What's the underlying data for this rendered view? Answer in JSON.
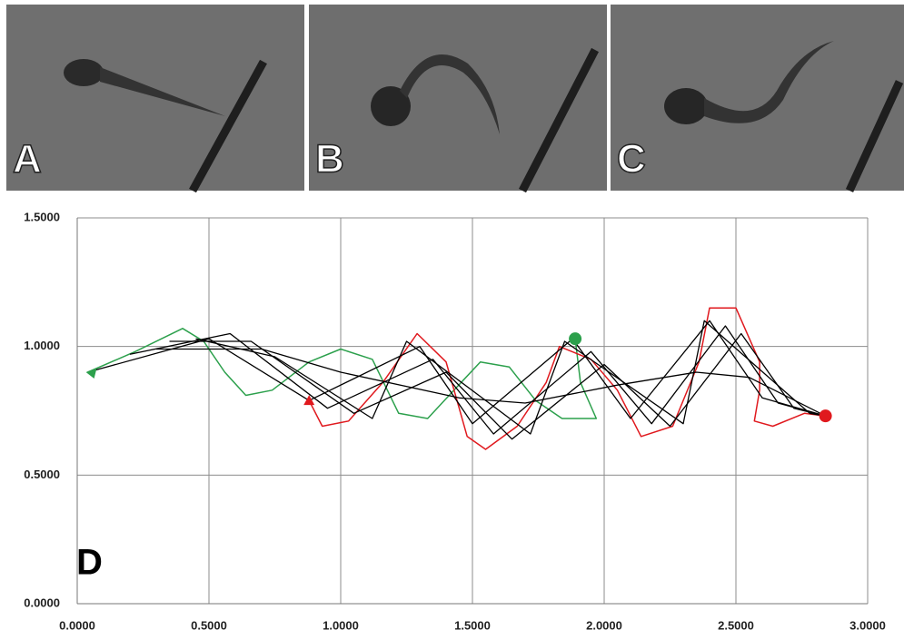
{
  "panels": [
    "A",
    "B",
    "C"
  ],
  "chart_data": {
    "type": "line",
    "label": "D",
    "xlim": [
      0,
      3
    ],
    "ylim": [
      0,
      1.5
    ],
    "grid": true,
    "xticks": [
      {
        "value": 0,
        "label": "0.0000"
      },
      {
        "value": 0.5,
        "label": "0.5000"
      },
      {
        "value": 1,
        "label": "1.0000"
      },
      {
        "value": 1.5,
        "label": "1.5000"
      },
      {
        "value": 2,
        "label": "2.0000"
      },
      {
        "value": 2.5,
        "label": "2.5000"
      },
      {
        "value": 3,
        "label": "3.0000"
      }
    ],
    "yticks": [
      {
        "value": 0,
        "label": "0.0000"
      },
      {
        "value": 0.5,
        "label": "0.5000"
      },
      {
        "value": 1,
        "label": "1.0000"
      },
      {
        "value": 1.5,
        "label": "1.5000"
      }
    ],
    "series": [
      {
        "color": "#2ca04c",
        "x": [
          0.04,
          0.22,
          0.4,
          0.48,
          0.56,
          0.64,
          0.74,
          0.88,
          1.0,
          1.12,
          1.22,
          1.33,
          1.43,
          1.53,
          1.64,
          1.74,
          1.84,
          1.97,
          1.91,
          1.89
        ],
        "values": [
          0.9,
          0.98,
          1.07,
          1.02,
          0.9,
          0.81,
          0.83,
          0.94,
          0.99,
          0.95,
          0.74,
          0.72,
          0.83,
          0.94,
          0.92,
          0.79,
          0.72,
          0.72,
          0.86,
          1.03
        ]
      },
      {
        "color": "#e0191e",
        "x": [
          0.88,
          0.93,
          1.03,
          1.16,
          1.29,
          1.4,
          1.48,
          1.55,
          1.67,
          1.78,
          1.83,
          1.95,
          2.05,
          2.14,
          2.26,
          2.36,
          2.4,
          2.5,
          2.59,
          2.59,
          2.57,
          2.64,
          2.76,
          2.84
        ],
        "values": [
          0.79,
          0.69,
          0.71,
          0.86,
          1.05,
          0.94,
          0.65,
          0.6,
          0.69,
          0.86,
          1.0,
          0.95,
          0.83,
          0.65,
          0.69,
          0.94,
          1.15,
          1.15,
          0.94,
          0.83,
          0.71,
          0.69,
          0.74,
          0.73
        ]
      },
      {
        "color": "#000000",
        "x": [
          0.04,
          0.5,
          0.88,
          1.3,
          1.5,
          1.88,
          2.1,
          2.4,
          2.6,
          2.84
        ],
        "values": [
          0.9,
          1.03,
          0.79,
          1.0,
          0.7,
          1.03,
          0.72,
          1.1,
          0.8,
          0.73
        ]
      },
      {
        "color": "#000000",
        "x": [
          0.2,
          0.58,
          0.95,
          1.35,
          1.58,
          1.95,
          2.18,
          2.46,
          2.66,
          2.84
        ],
        "values": [
          0.97,
          1.05,
          0.76,
          0.95,
          0.66,
          0.98,
          0.7,
          1.08,
          0.78,
          0.73
        ]
      },
      {
        "color": "#000000",
        "x": [
          0.35,
          0.66,
          1.05,
          1.4,
          1.65,
          2.0,
          2.25,
          2.52,
          2.72,
          2.84
        ],
        "values": [
          1.02,
          1.02,
          0.74,
          0.9,
          0.64,
          0.93,
          0.69,
          1.05,
          0.76,
          0.73
        ]
      },
      {
        "color": "#000000",
        "x": [
          0.45,
          0.75,
          1.12,
          1.25,
          1.72,
          1.85,
          2.3,
          2.38,
          2.78,
          2.84
        ],
        "values": [
          1.03,
          0.96,
          0.72,
          1.02,
          0.66,
          1.02,
          0.7,
          1.1,
          0.74,
          0.73
        ]
      },
      {
        "color": "#000000",
        "x": [
          0.3,
          0.7,
          1.0,
          1.45,
          1.7,
          2.05,
          2.35,
          2.55,
          2.84
        ],
        "values": [
          0.99,
          0.99,
          0.9,
          0.8,
          0.78,
          0.85,
          0.9,
          0.88,
          0.73
        ]
      }
    ],
    "markers": [
      {
        "x": 0.04,
        "y": 0.9,
        "color": "#2ca04c",
        "shape": "arrow"
      },
      {
        "x": 0.88,
        "y": 0.79,
        "color": "#e0191e",
        "shape": "triangle"
      },
      {
        "x": 1.89,
        "y": 1.03,
        "color": "#2ca04c",
        "shape": "circle"
      },
      {
        "x": 2.84,
        "y": 0.73,
        "color": "#e0191e",
        "shape": "circle"
      }
    ]
  }
}
